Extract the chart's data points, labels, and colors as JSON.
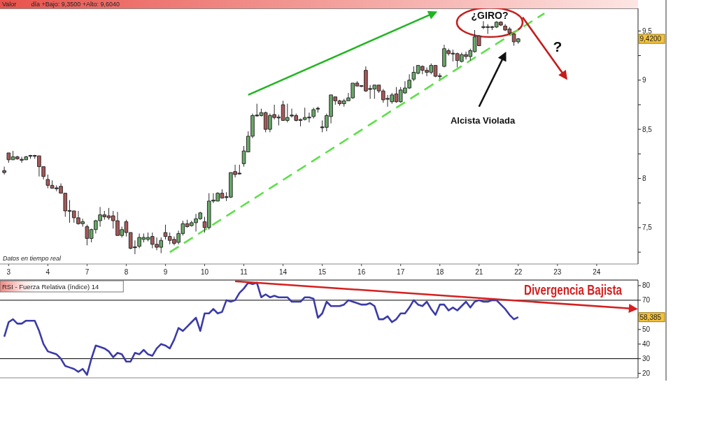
{
  "chart_data": [
    {
      "type": "candlestick",
      "title": "Valor",
      "subtitle": "día +Bajo: 9,3500 +Alto: 9,6040",
      "categories": [
        null,
        "3",
        null,
        null,
        null,
        null,
        null,
        null,
        null,
        null,
        "4",
        null,
        null,
        null,
        null,
        null,
        null,
        null,
        null,
        "7",
        null,
        null,
        null,
        null,
        null,
        null,
        null,
        null,
        "8",
        null,
        null,
        null,
        null,
        null,
        null,
        null,
        null,
        "9",
        null,
        null,
        null,
        null,
        null,
        null,
        null,
        null,
        "10",
        null,
        null,
        null,
        null,
        null,
        null,
        null,
        null,
        "11",
        null,
        null,
        null,
        null,
        null,
        null,
        null,
        null,
        "14",
        null,
        null,
        null,
        null,
        null,
        null,
        null,
        null,
        "15",
        null,
        null,
        null,
        null,
        null,
        null,
        null,
        null,
        "16",
        null,
        null,
        null,
        null,
        null,
        null,
        null,
        null,
        "17",
        null,
        null,
        null,
        null,
        null,
        null,
        null,
        null,
        "18",
        null,
        null,
        null,
        null,
        null,
        null,
        null,
        null,
        "21",
        null,
        null,
        null,
        null,
        null,
        null,
        null,
        null,
        "22",
        null,
        null,
        null,
        null,
        null,
        null,
        null,
        null,
        "23",
        null,
        null,
        null,
        null,
        null,
        null,
        null,
        null,
        "24",
        null,
        null,
        null,
        null,
        null,
        null,
        null,
        null,
        null
      ],
      "ylim": [
        7.13,
        9.73
      ],
      "yticks": [
        {
          "value": 7.25,
          "label": null
        },
        {
          "value": 7.5,
          "label": "7,5"
        },
        {
          "value": 7.75,
          "label": null
        },
        8,
        {
          "value": 8.25,
          "label": null
        },
        {
          "value": 8.5,
          "label": "8,5"
        },
        {
          "value": 8.75,
          "label": null
        },
        9,
        {
          "value": 9.25,
          "label": null
        },
        {
          "value": 9.5,
          "label": "9,5"
        }
      ],
      "ohlc": [
        [
          8.08,
          8.12,
          8.04,
          8.06
        ],
        [
          8.26,
          8.26,
          8.16,
          8.19
        ],
        [
          8.19,
          8.28,
          8.19,
          8.22
        ],
        [
          8.22,
          8.23,
          8.19,
          8.2
        ],
        [
          8.19,
          8.22,
          8.16,
          8.19
        ],
        [
          8.19,
          8.23,
          8.19,
          8.22
        ],
        [
          8.23,
          8.24,
          8.2,
          8.23
        ],
        [
          8.23,
          8.24,
          8.2,
          8.23
        ],
        [
          8.23,
          8.23,
          8.02,
          8.12
        ],
        [
          8.12,
          8.12,
          7.99,
          8.02
        ],
        [
          7.99,
          8.04,
          7.9,
          7.93
        ],
        [
          7.93,
          7.98,
          7.9,
          7.9
        ],
        [
          7.9,
          7.93,
          7.87,
          7.9
        ],
        [
          7.92,
          7.95,
          7.85,
          7.85
        ],
        [
          7.85,
          7.85,
          7.61,
          7.67
        ],
        [
          7.67,
          7.78,
          7.55,
          7.67
        ],
        [
          7.67,
          7.67,
          7.55,
          7.6
        ],
        [
          7.6,
          7.67,
          7.53,
          7.54
        ],
        [
          7.54,
          7.59,
          7.51,
          7.56
        ],
        [
          7.51,
          7.53,
          7.32,
          7.39
        ],
        [
          7.39,
          7.49,
          7.35,
          7.48
        ],
        [
          7.48,
          7.58,
          7.44,
          7.57
        ],
        [
          7.57,
          7.71,
          7.51,
          7.63
        ],
        [
          7.63,
          7.67,
          7.58,
          7.61
        ],
        [
          7.62,
          7.7,
          7.58,
          7.6
        ],
        [
          7.62,
          7.67,
          7.49,
          7.57
        ],
        [
          7.57,
          7.66,
          7.42,
          7.42
        ],
        [
          7.42,
          7.51,
          7.4,
          7.48
        ],
        [
          7.56,
          7.58,
          7.41,
          7.45
        ],
        [
          7.45,
          7.45,
          7.28,
          7.29
        ],
        [
          7.3,
          7.37,
          7.23,
          7.3
        ],
        [
          7.31,
          7.44,
          7.29,
          7.4
        ],
        [
          7.38,
          7.44,
          7.35,
          7.4
        ],
        [
          7.38,
          7.45,
          7.36,
          7.4
        ],
        [
          7.41,
          7.45,
          7.29,
          7.33
        ],
        [
          7.33,
          7.4,
          7.27,
          7.3
        ],
        [
          7.3,
          7.4,
          7.24,
          7.37
        ],
        [
          7.45,
          7.53,
          7.38,
          7.41
        ],
        [
          7.41,
          7.45,
          7.33,
          7.37
        ],
        [
          7.38,
          7.41,
          7.32,
          7.34
        ],
        [
          7.35,
          7.47,
          7.33,
          7.44
        ],
        [
          7.44,
          7.57,
          7.42,
          7.54
        ],
        [
          7.54,
          7.58,
          7.5,
          7.51
        ],
        [
          7.52,
          7.57,
          7.51,
          7.55
        ],
        [
          7.55,
          7.64,
          7.46,
          7.59
        ],
        [
          7.59,
          7.66,
          7.58,
          7.65
        ],
        [
          7.56,
          7.61,
          7.45,
          7.5
        ],
        [
          7.5,
          7.85,
          7.48,
          7.77
        ],
        [
          7.77,
          7.85,
          7.75,
          7.78
        ],
        [
          7.77,
          7.86,
          7.77,
          7.85
        ],
        [
          7.85,
          7.89,
          7.8,
          7.8
        ],
        [
          7.81,
          7.86,
          7.77,
          7.81
        ],
        [
          7.81,
          8.06,
          7.8,
          8.06
        ],
        [
          8.07,
          8.14,
          8.01,
          8.04
        ],
        [
          8.05,
          8.14,
          8.04,
          8.05
        ],
        [
          8.15,
          8.33,
          8.12,
          8.28
        ],
        [
          8.27,
          8.48,
          8.27,
          8.43
        ],
        [
          8.43,
          8.66,
          8.41,
          8.64
        ],
        [
          8.64,
          8.76,
          8.63,
          8.64
        ],
        [
          8.64,
          8.71,
          8.63,
          8.67
        ],
        [
          8.67,
          8.68,
          8.47,
          8.5
        ],
        [
          8.5,
          8.66,
          8.47,
          8.64
        ],
        [
          8.65,
          8.75,
          8.6,
          8.62
        ],
        [
          8.62,
          8.65,
          8.54,
          8.62
        ],
        [
          8.75,
          8.79,
          8.59,
          8.59
        ],
        [
          8.59,
          8.76,
          8.57,
          8.62
        ],
        [
          8.64,
          8.71,
          8.62,
          8.64
        ],
        [
          8.64,
          8.66,
          8.58,
          8.59
        ],
        [
          8.59,
          8.61,
          8.53,
          8.6
        ],
        [
          8.6,
          8.72,
          8.59,
          8.62
        ],
        [
          8.62,
          8.67,
          8.57,
          8.62
        ],
        [
          8.63,
          8.72,
          8.61,
          8.7
        ],
        [
          8.71,
          8.73,
          8.67,
          8.71
        ],
        [
          8.52,
          8.59,
          8.47,
          8.52
        ],
        [
          8.52,
          8.66,
          8.48,
          8.64
        ],
        [
          8.63,
          8.85,
          8.56,
          8.85
        ],
        [
          8.83,
          8.83,
          8.75,
          8.79
        ],
        [
          8.79,
          8.8,
          8.74,
          8.76
        ],
        [
          8.76,
          8.81,
          8.73,
          8.79
        ],
        [
          8.79,
          8.87,
          8.79,
          8.82
        ],
        [
          8.82,
          8.97,
          8.81,
          8.97
        ],
        [
          8.97,
          8.99,
          8.94,
          8.94
        ],
        [
          8.94,
          8.94,
          8.93,
          8.94
        ],
        [
          9.1,
          9.14,
          8.88,
          8.89
        ],
        [
          8.91,
          8.95,
          8.81,
          8.91
        ],
        [
          8.91,
          8.95,
          8.81,
          8.95
        ],
        [
          8.95,
          8.95,
          8.87,
          8.89
        ],
        [
          8.89,
          8.91,
          8.77,
          8.8
        ],
        [
          8.81,
          8.85,
          8.73,
          8.81
        ],
        [
          8.78,
          8.87,
          8.76,
          8.85
        ],
        [
          8.86,
          8.93,
          8.77,
          8.78
        ],
        [
          8.78,
          8.93,
          8.77,
          8.9
        ],
        [
          8.87,
          8.99,
          8.86,
          8.92
        ],
        [
          8.92,
          9.06,
          8.91,
          9.0
        ],
        [
          9.01,
          9.14,
          8.99,
          9.08
        ],
        [
          9.07,
          9.15,
          9.06,
          9.15
        ],
        [
          9.14,
          9.15,
          9.06,
          9.1
        ],
        [
          9.1,
          9.13,
          9.04,
          9.08
        ],
        [
          9.08,
          9.17,
          9.06,
          9.15
        ],
        [
          9.15,
          9.15,
          9.03,
          9.04
        ],
        [
          9.04,
          9.07,
          9.01,
          9.04
        ],
        [
          9.14,
          9.36,
          9.13,
          9.32
        ],
        [
          9.3,
          9.32,
          9.25,
          9.27
        ],
        [
          9.27,
          9.31,
          9.19,
          9.27
        ],
        [
          9.27,
          9.28,
          9.13,
          9.2
        ],
        [
          9.19,
          9.28,
          9.18,
          9.26
        ],
        [
          9.26,
          9.29,
          9.21,
          9.24
        ],
        [
          9.24,
          9.32,
          9.2,
          9.3
        ],
        [
          9.29,
          9.51,
          9.28,
          9.44
        ],
        [
          9.45,
          9.46,
          9.35,
          9.35
        ],
        [
          9.54,
          9.6,
          9.52,
          9.54
        ],
        [
          9.54,
          9.57,
          9.47,
          9.54
        ],
        [
          9.54,
          9.55,
          9.51,
          9.54
        ],
        [
          9.54,
          9.6,
          9.53,
          9.59
        ],
        [
          9.59,
          9.6,
          9.55,
          9.56
        ],
        [
          9.55,
          9.57,
          9.5,
          9.51
        ],
        [
          9.52,
          9.54,
          9.46,
          9.48
        ],
        [
          9.47,
          9.48,
          9.35,
          9.39
        ],
        [
          9.39,
          9.43,
          9.37,
          9.42
        ],
        null,
        null,
        null,
        null,
        null,
        null,
        null,
        null,
        null,
        null,
        null,
        null,
        null,
        null,
        null,
        null,
        null,
        null,
        null,
        null,
        null,
        null,
        null,
        null,
        null,
        null,
        null
      ],
      "series": [
        {
          "type": "line",
          "color": "#5ee04a",
          "line_style": "dashed",
          "values": [
            null,
            null,
            null,
            null,
            null,
            null,
            null,
            null,
            null,
            null,
            null,
            null,
            null,
            null,
            null,
            null,
            null,
            null,
            null,
            null,
            null,
            null,
            null,
            null,
            null,
            null,
            null,
            null,
            null,
            null,
            null,
            null,
            null,
            null,
            null,
            null,
            null,
            null,
            7.25,
            null,
            null,
            null,
            null,
            null,
            null,
            null,
            null,
            null,
            null,
            null,
            null,
            null,
            null,
            null,
            null,
            null,
            null,
            null,
            null,
            null,
            null,
            null,
            null,
            null,
            null,
            null,
            null,
            null,
            null,
            null,
            null,
            null,
            null,
            null,
            null,
            null,
            null,
            null,
            null,
            null,
            null,
            null,
            null,
            null,
            null,
            null,
            null,
            null,
            null,
            null,
            null,
            null,
            null,
            null,
            null,
            null,
            null,
            null,
            null,
            null,
            null,
            null,
            null,
            null,
            null,
            null,
            null,
            null,
            null,
            null,
            null,
            null,
            null,
            null,
            null,
            null,
            null,
            null,
            null,
            null,
            null,
            null,
            null,
            null,
            9.68,
            null,
            null,
            null,
            null,
            null,
            null,
            null,
            null,
            null,
            null,
            null,
            null,
            null,
            null,
            null,
            null,
            null,
            null,
            null,
            null,
            null
          ]
        },
        {
          "type": "line",
          "color": "#21b521",
          "values": [
            null,
            null,
            null,
            null,
            null,
            null,
            null,
            null,
            null,
            null,
            null,
            null,
            null,
            null,
            null,
            null,
            null,
            null,
            null,
            null,
            null,
            null,
            null,
            null,
            null,
            null,
            null,
            null,
            null,
            null,
            null,
            null,
            null,
            null,
            null,
            null,
            null,
            null,
            null,
            null,
            null,
            null,
            null,
            null,
            null,
            null,
            null,
            null,
            null,
            null,
            null,
            null,
            null,
            null,
            null,
            null,
            8.85,
            null,
            null,
            null,
            null,
            null,
            null,
            null,
            null,
            null,
            null,
            null,
            null,
            null,
            null,
            null,
            null,
            null,
            null,
            null,
            null,
            null,
            null,
            null,
            null,
            null,
            null,
            null,
            null,
            null,
            null,
            null,
            null,
            null,
            null,
            null,
            null,
            null,
            null,
            null,
            null,
            null,
            null,
            9.69,
            null,
            null,
            null,
            null,
            null,
            null,
            null,
            null,
            null,
            null,
            null,
            null,
            null,
            null,
            null,
            null,
            null,
            null,
            null,
            null,
            null,
            null,
            null,
            null,
            null,
            null,
            null,
            null,
            null,
            null,
            null,
            null,
            null,
            null,
            null,
            null,
            null,
            null,
            null,
            null,
            null,
            null,
            null,
            null,
            null,
            null
          ]
        },
        {
          "type": "line",
          "color": "#111111",
          "values": [
            null,
            null,
            null,
            null,
            null,
            null,
            null,
            null,
            null,
            null,
            null,
            null,
            null,
            null,
            null,
            null,
            null,
            null,
            null,
            null,
            null,
            null,
            null,
            null,
            null,
            null,
            null,
            null,
            null,
            null,
            null,
            null,
            null,
            null,
            null,
            null,
            null,
            null,
            null,
            null,
            null,
            null,
            null,
            null,
            null,
            null,
            null,
            null,
            null,
            null,
            null,
            null,
            null,
            null,
            null,
            null,
            null,
            null,
            null,
            null,
            null,
            null,
            null,
            null,
            null,
            null,
            null,
            null,
            null,
            null,
            null,
            null,
            null,
            null,
            null,
            null,
            null,
            null,
            null,
            null,
            null,
            null,
            null,
            null,
            null,
            null,
            null,
            null,
            null,
            null,
            null,
            null,
            null,
            null,
            null,
            null,
            null,
            null,
            null,
            null,
            null,
            null,
            null,
            null,
            null,
            null,
            null,
            null,
            null,
            8.73,
            null,
            null,
            null,
            null,
            null,
            9.27,
            null,
            null,
            null,
            null,
            null,
            null,
            null,
            null,
            null,
            null,
            null,
            null,
            null,
            null,
            null,
            null,
            null,
            null,
            null,
            null,
            null,
            null,
            null,
            null,
            null,
            null,
            null,
            null,
            null,
            null
          ]
        },
        {
          "type": "line",
          "color": "#c41c1c",
          "values": [
            null,
            null,
            null,
            null,
            null,
            null,
            null,
            null,
            null,
            null,
            null,
            null,
            null,
            null,
            null,
            null,
            null,
            null,
            null,
            null,
            null,
            null,
            null,
            null,
            null,
            null,
            null,
            null,
            null,
            null,
            null,
            null,
            null,
            null,
            null,
            null,
            null,
            null,
            null,
            null,
            null,
            null,
            null,
            null,
            null,
            null,
            null,
            null,
            null,
            null,
            null,
            null,
            null,
            null,
            null,
            null,
            null,
            null,
            null,
            null,
            null,
            null,
            null,
            null,
            null,
            null,
            null,
            null,
            null,
            null,
            null,
            null,
            null,
            null,
            null,
            null,
            null,
            null,
            null,
            null,
            null,
            null,
            null,
            null,
            null,
            null,
            null,
            null,
            null,
            null,
            null,
            null,
            null,
            null,
            null,
            null,
            null,
            null,
            null,
            null,
            null,
            null,
            null,
            null,
            null,
            null,
            null,
            null,
            null,
            null,
            null,
            null,
            null,
            null,
            null,
            null,
            null,
            null,
            null,
            9.64,
            null,
            null,
            null,
            null,
            null,
            null,
            null,
            null,
            null,
            9.02,
            null,
            null,
            null,
            null,
            null,
            null,
            null,
            null,
            null,
            null,
            null,
            null,
            null,
            null,
            null,
            null
          ]
        }
      ],
      "annotations": [
        "¿GIRO?",
        "?",
        "Alcista Violada",
        {
          "text": "9,4200",
          "y": 9.42
        },
        "Datos en tiempo real"
      ]
    },
    {
      "type": "line",
      "title": "RSI - Fuerza Relativa (índice) 14",
      "categories": [
        null,
        null,
        null,
        null,
        null,
        null,
        null,
        null,
        null,
        null,
        null,
        null,
        null,
        null,
        null,
        null,
        null,
        null,
        null,
        null,
        null,
        null,
        null,
        null,
        null,
        null,
        null,
        null,
        null,
        null,
        null,
        null,
        null,
        null,
        null,
        null,
        null,
        null,
        null,
        null,
        null,
        null,
        null,
        null,
        null,
        null,
        null,
        null,
        null,
        null,
        null,
        null,
        null,
        null,
        null,
        null,
        null,
        null,
        null,
        null,
        null,
        null,
        null,
        null,
        null,
        null,
        null,
        null,
        null,
        null,
        null,
        null,
        null,
        null,
        null,
        null,
        null,
        null,
        null,
        null,
        null,
        null,
        null,
        null,
        null,
        null,
        null,
        null,
        null,
        null,
        null,
        null,
        null,
        null,
        null,
        null,
        null,
        null,
        null,
        null,
        null,
        null,
        null,
        null,
        null,
        null,
        null,
        null,
        null,
        null,
        null,
        null,
        null,
        null,
        null,
        null,
        null,
        null,
        null,
        null,
        null,
        null,
        null,
        null,
        null,
        null,
        null,
        null,
        null,
        null,
        null,
        null,
        null,
        null,
        null,
        null,
        null,
        null,
        null,
        null,
        null,
        null,
        null,
        null,
        null,
        null
      ],
      "ylim": [
        16.9,
        83.8
      ],
      "yticks": [
        20,
        30,
        40,
        50,
        {
          "value": 60,
          "label": null
        },
        70,
        80
      ],
      "ref_lines": [
        {
          "axis": "y",
          "value": 70,
          "color": "#000000"
        },
        {
          "axis": "y",
          "value": 30,
          "color": "#000000"
        }
      ],
      "series": [
        {
          "color": "#3b3ba8",
          "values": [
            45,
            55,
            57,
            54,
            54,
            56,
            56,
            56,
            49,
            40,
            35,
            34,
            33,
            30,
            25,
            24,
            23,
            21,
            23,
            19,
            30,
            39,
            38,
            37,
            35,
            31,
            34,
            33,
            28,
            28,
            34,
            33,
            36,
            33,
            32,
            37,
            40,
            39,
            37,
            43,
            51,
            49,
            52,
            55,
            58,
            49,
            61,
            61,
            64,
            61,
            62,
            70,
            69,
            70,
            75,
            78,
            82,
            81,
            82,
            72,
            74,
            72,
            73,
            72,
            72,
            72,
            69,
            69,
            69,
            72,
            72,
            71,
            58,
            61,
            69,
            66,
            66,
            66,
            67,
            70,
            69,
            68,
            67,
            67,
            68,
            66,
            57,
            57,
            59,
            55,
            57,
            61,
            61,
            65,
            70,
            67,
            66,
            69,
            64,
            60,
            67,
            67,
            63,
            65,
            63,
            66,
            69,
            65,
            69,
            70,
            69,
            69,
            70,
            70,
            67,
            64,
            60,
            57,
            58.385,
            null,
            null,
            null,
            null,
            null,
            null,
            null,
            null,
            null,
            null,
            null,
            null,
            null,
            null,
            null,
            null,
            null,
            null,
            null,
            null,
            null,
            null,
            null,
            null,
            null,
            null,
            null
          ]
        },
        {
          "type": "line",
          "color": "#d42020",
          "values": [
            null,
            null,
            null,
            null,
            null,
            null,
            null,
            null,
            null,
            null,
            null,
            null,
            null,
            null,
            null,
            null,
            null,
            null,
            null,
            null,
            null,
            null,
            null,
            null,
            null,
            null,
            null,
            null,
            null,
            null,
            null,
            null,
            null,
            null,
            null,
            null,
            null,
            null,
            null,
            null,
            null,
            null,
            null,
            null,
            null,
            null,
            null,
            null,
            null,
            null,
            null,
            null,
            null,
            83,
            null,
            null,
            null,
            null,
            null,
            null,
            null,
            null,
            null,
            null,
            null,
            null,
            null,
            null,
            null,
            null,
            null,
            null,
            null,
            null,
            null,
            null,
            null,
            null,
            null,
            null,
            null,
            null,
            null,
            null,
            null,
            null,
            null,
            null,
            null,
            null,
            null,
            null,
            null,
            null,
            null,
            null,
            null,
            null,
            null,
            null,
            null,
            null,
            null,
            null,
            null,
            null,
            null,
            null,
            null,
            null,
            null,
            null,
            null,
            null,
            null,
            null,
            null,
            null,
            null,
            null,
            null,
            null,
            null,
            null,
            null,
            null,
            null,
            null,
            null,
            null,
            null,
            null,
            null,
            null,
            null,
            null,
            null,
            null,
            null,
            null,
            null,
            null,
            null,
            null,
            null,
            64.1
          ]
        }
      ],
      "annotations": [
        "Divergencia Bajista",
        {
          "text": "58,385",
          "y": 58.385
        }
      ]
    }
  ]
}
